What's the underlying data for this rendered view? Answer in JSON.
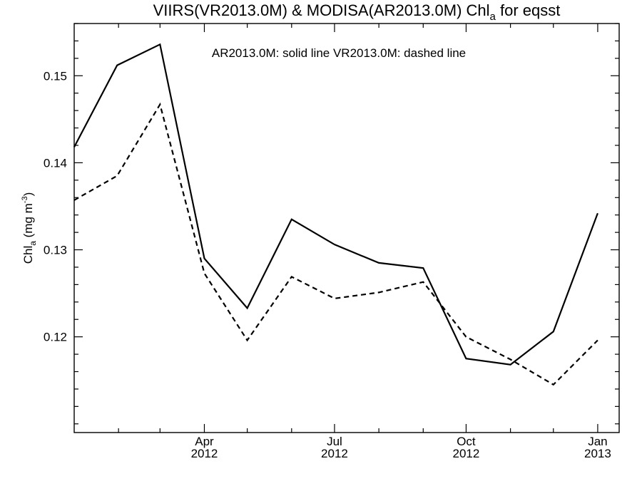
{
  "chart_data": {
    "type": "line",
    "title_main": "VIIRS(VR2013.0M) & MODISA(AR2013.0M)  Chl",
    "title_sub": "a",
    "title_tail": " for eqsst",
    "ylabel_main": "Chl",
    "ylabel_sub": "a",
    "ylabel_unit": " (mg m",
    "ylabel_exp": "-3",
    "ylabel_close": ")",
    "annotation": "AR2013.0M: solid line   VR2013.0M: dashed line",
    "ylim": [
      0.109,
      0.156
    ],
    "y_ticks": [
      0.12,
      0.13,
      0.14,
      0.15
    ],
    "y_tick_labels": [
      "0.12",
      "0.13",
      "0.14",
      "0.15"
    ],
    "xlim": [
      "2012-01-01",
      "2013-01-16"
    ],
    "x_major_ticks": [
      {
        "date": "2012-04-01",
        "month": "Apr",
        "year": "2012"
      },
      {
        "date": "2012-07-01",
        "month": "Jul",
        "year": "2012"
      },
      {
        "date": "2012-10-01",
        "month": "Oct",
        "year": "2012"
      },
      {
        "date": "2013-01-01",
        "month": "Jan",
        "year": "2013"
      }
    ],
    "x_minor_ticks": [
      "2012-02-01",
      "2012-03-01",
      "2012-05-01",
      "2012-06-01",
      "2012-08-01",
      "2012-09-01",
      "2012-11-01",
      "2012-12-01"
    ],
    "series": [
      {
        "name": "AR2013.0M",
        "style": "solid",
        "color": "#000000",
        "x": [
          "2012-01-01",
          "2012-01-31",
          "2012-03-01",
          "2012-04-01",
          "2012-05-01",
          "2012-06-01",
          "2012-07-01",
          "2012-08-01",
          "2012-09-01",
          "2012-10-01",
          "2012-11-01",
          "2012-12-01",
          "2013-01-01"
        ],
        "y": [
          0.1418,
          0.1512,
          0.1536,
          0.129,
          0.1233,
          0.1335,
          0.1306,
          0.1285,
          0.1279,
          0.1175,
          0.1168,
          0.1206,
          0.1342
        ]
      },
      {
        "name": "VR2013.0M",
        "style": "dashed",
        "color": "#000000",
        "x": [
          "2012-01-01",
          "2012-01-31",
          "2012-03-01",
          "2012-04-01",
          "2012-05-01",
          "2012-06-01",
          "2012-07-01",
          "2012-08-01",
          "2012-09-01",
          "2012-10-01",
          "2012-11-01",
          "2012-12-01",
          "2013-01-01"
        ],
        "y": [
          0.1357,
          0.1385,
          0.1467,
          0.1273,
          0.1196,
          0.1269,
          0.1244,
          0.1251,
          0.1263,
          0.12,
          0.1174,
          0.1145,
          0.1196
        ]
      }
    ]
  }
}
